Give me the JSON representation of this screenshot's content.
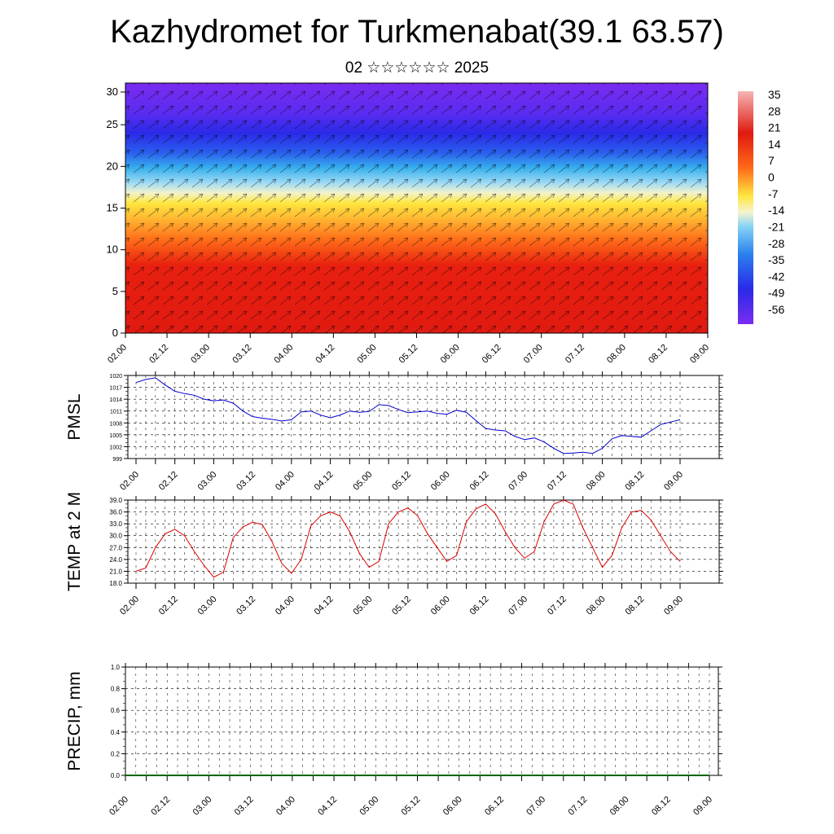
{
  "title": "Kazhydromet for Turkmenabat(39.1 63.57)",
  "subtitle": "02 ☆☆☆☆☆☆ 2025",
  "chart_data": [
    {
      "type": "heatmap",
      "ylim": [
        0,
        30
      ],
      "yticks": [
        "0",
        "5",
        "10",
        "15",
        "20",
        "25",
        "30"
      ],
      "xticks": [
        "02.00",
        "02.12",
        "03.00",
        "03.12",
        "04.00",
        "04.12",
        "05.00",
        "05.12",
        "06.00",
        "06.12",
        "07.00",
        "07.12",
        "08.00",
        "08.12",
        "09.00"
      ],
      "colorbar_labels": [
        "35",
        "28",
        "21",
        "14",
        "7",
        "0",
        "-7",
        "-14",
        "-21",
        "-28",
        "-35",
        "-42",
        "-49",
        "-56"
      ],
      "colors": {
        "top": "#7a2cf0",
        "blue": "#2a2aee",
        "cyan": "#48c8f0",
        "yellow": "#ffe640",
        "orange": "#ff8a1e",
        "red": "#e6190d",
        "pink": "#f0a0a0"
      }
    },
    {
      "type": "line",
      "ylabel": "PMSL",
      "ylim": [
        999,
        1020
      ],
      "yticks": [
        "999",
        "1002",
        "1005",
        "1008",
        "1011",
        "1014",
        "1017",
        "1020"
      ],
      "xticks": [
        "02.00",
        "02.12",
        "03.00",
        "03.12",
        "04.00",
        "04.12",
        "05.00",
        "05.12",
        "06.00",
        "06.12",
        "07.00",
        "07.12",
        "08.00",
        "08.12",
        "09.00"
      ],
      "color": "#0000cc",
      "values": [
        1018.2,
        1019.0,
        1019.4,
        1017.6,
        1016.0,
        1015.4,
        1015.0,
        1014.0,
        1013.6,
        1013.8,
        1013.0,
        1011.0,
        1009.6,
        1009.2,
        1008.9,
        1008.5,
        1008.8,
        1010.8,
        1011.0,
        1010.0,
        1009.3,
        1010.0,
        1011.0,
        1010.7,
        1010.9,
        1012.6,
        1012.4,
        1011.4,
        1010.6,
        1010.8,
        1011.0,
        1010.4,
        1010.2,
        1011.2,
        1010.7,
        1008.6,
        1006.6,
        1006.2,
        1006.0,
        1004.6,
        1003.8,
        1004.2,
        1003.2,
        1001.6,
        1000.3,
        1000.4,
        1000.6,
        1000.3,
        1001.6,
        1004.0,
        1004.8,
        1004.6,
        1004.4,
        1006.0,
        1007.6,
        1008.2,
        1008.8
      ]
    },
    {
      "type": "line",
      "ylabel": "TEMP at 2 M",
      "ylim": [
        18,
        39
      ],
      "yticks": [
        "18.0",
        "21.0",
        "24.0",
        "27.0",
        "30.0",
        "33.0",
        "36.0",
        "39.0"
      ],
      "xticks": [
        "02.00",
        "02.12",
        "03.00",
        "03.12",
        "04.00",
        "04.12",
        "05.00",
        "05.12",
        "06.00",
        "06.12",
        "07.00",
        "07.12",
        "08.00",
        "08.12",
        "09.00"
      ],
      "color": "#dd0000",
      "values": [
        21.0,
        21.8,
        27.0,
        30.5,
        31.6,
        30.0,
        26.0,
        22.5,
        19.5,
        20.8,
        29.5,
        32.2,
        33.4,
        32.8,
        28.5,
        23.0,
        20.5,
        24.0,
        32.5,
        35.0,
        36.0,
        35.0,
        31.0,
        25.5,
        22.0,
        23.5,
        33.0,
        36.0,
        37.0,
        35.0,
        30.5,
        27.0,
        23.5,
        25.0,
        33.5,
        36.8,
        38.0,
        35.5,
        31.0,
        27.0,
        24.3,
        26.0,
        33.5,
        38.0,
        39.0,
        38.0,
        32.0,
        27.0,
        22.0,
        25.0,
        32.0,
        36.0,
        36.4,
        34.0,
        30.0,
        26.0,
        23.5
      ]
    },
    {
      "type": "line",
      "ylabel": "PRECIP, mm",
      "ylim": [
        0,
        1
      ],
      "yticks": [
        "0.0",
        "0.2",
        "0.4",
        "0.6",
        "0.8",
        "1.0"
      ],
      "xticks": [
        "02.00",
        "02.12",
        "03.00",
        "03.12",
        "04.00",
        "04.12",
        "05.00",
        "05.12",
        "06.00",
        "06.12",
        "07.00",
        "07.12",
        "08.00",
        "08.12",
        "09.00"
      ],
      "color": "#006600",
      "values": [
        0,
        0,
        0,
        0,
        0,
        0,
        0,
        0,
        0,
        0,
        0,
        0,
        0,
        0,
        0
      ]
    }
  ]
}
